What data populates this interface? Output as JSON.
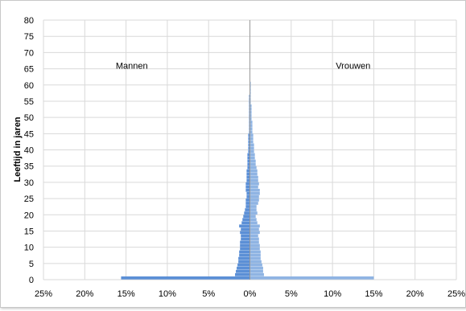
{
  "chart_data": {
    "type": "bar",
    "orientation": "horizontal-population-pyramid",
    "title": "",
    "xlabel": "",
    "ylabel": "Leeftijd in jaren",
    "xlim": [
      -25,
      25
    ],
    "ylim": [
      0,
      80
    ],
    "x_tick_labels": [
      "25%",
      "20%",
      "15%",
      "10%",
      "5%",
      "0%",
      "5%",
      "10%",
      "15%",
      "20%",
      "25%"
    ],
    "x_ticks": [
      -25,
      -20,
      -15,
      -10,
      -5,
      0,
      5,
      10,
      15,
      20,
      25
    ],
    "y_ticks": [
      0,
      5,
      10,
      15,
      20,
      25,
      30,
      35,
      40,
      45,
      50,
      55,
      60,
      65,
      70,
      75,
      80
    ],
    "grid": true,
    "annotations": [
      {
        "text": "Mannen",
        "x": -14.3,
        "y": 66
      },
      {
        "text": "Vrouwen",
        "x": 12.5,
        "y": 66
      }
    ],
    "colors": {
      "mannen": "#5b8fd6",
      "vrouwen": "#8fb4e3"
    },
    "ages": [
      0,
      1,
      2,
      3,
      4,
      5,
      6,
      7,
      8,
      9,
      10,
      11,
      12,
      13,
      14,
      15,
      16,
      17,
      18,
      19,
      20,
      21,
      22,
      23,
      24,
      25,
      26,
      27,
      28,
      29,
      30,
      31,
      32,
      33,
      34,
      35,
      36,
      37,
      38,
      39,
      40,
      41,
      42,
      43,
      44,
      45,
      46,
      47,
      48,
      49,
      50,
      51,
      52,
      53,
      54,
      55,
      56,
      57,
      58,
      59,
      60,
      61,
      62,
      63,
      64,
      65,
      66,
      67,
      68,
      69,
      70,
      71,
      72,
      73,
      74,
      75,
      76,
      77,
      78,
      79
    ],
    "series": [
      {
        "name": "Mannen",
        "values": [
          15.6,
          1.8,
          1.7,
          1.6,
          1.5,
          1.4,
          1.4,
          1.3,
          1.3,
          1.2,
          1.2,
          1.2,
          1.1,
          1.1,
          1.2,
          1.1,
          1.3,
          1.0,
          0.9,
          0.8,
          0.7,
          0.6,
          0.5,
          0.5,
          0.5,
          0.4,
          0.4,
          0.5,
          0.5,
          0.5,
          0.4,
          0.4,
          0.4,
          0.4,
          0.3,
          0.3,
          0.3,
          0.3,
          0.3,
          0.2,
          0.2,
          0.2,
          0.2,
          0.2,
          0.2,
          0.1,
          0.1,
          0.1,
          0.1,
          0.1,
          0.1,
          0.1,
          0.1,
          0.1,
          0.1,
          0.1,
          0.1,
          0.0,
          0.0,
          0.0,
          0.0,
          0.0,
          0.0,
          0.0,
          0.0,
          0.0,
          0.0,
          0.0,
          0.0,
          0.0,
          0.0,
          0.0,
          0.0,
          0.0,
          0.0,
          0.0,
          0.0,
          0.0,
          0.0,
          0.0
        ]
      },
      {
        "name": "Vrouwen",
        "values": [
          15.0,
          1.7,
          1.6,
          1.6,
          1.5,
          1.4,
          1.3,
          1.3,
          1.3,
          1.2,
          1.2,
          1.1,
          1.1,
          1.0,
          1.2,
          1.1,
          1.2,
          0.9,
          0.8,
          0.7,
          0.9,
          0.8,
          0.8,
          1.0,
          1.1,
          1.1,
          1.2,
          1.2,
          1.0,
          1.1,
          1.0,
          1.0,
          0.9,
          0.9,
          0.8,
          0.7,
          0.7,
          0.6,
          0.6,
          0.5,
          0.5,
          0.5,
          0.4,
          0.4,
          0.4,
          0.3,
          0.3,
          0.3,
          0.3,
          0.2,
          0.2,
          0.2,
          0.2,
          0.2,
          0.1,
          0.1,
          0.1,
          0.1,
          0.1,
          0.1,
          0.1,
          0.0,
          0.0,
          0.0,
          0.0,
          0.0,
          0.0,
          0.0,
          0.0,
          0.0,
          0.0,
          0.0,
          0.0,
          0.0,
          0.0,
          0.0,
          0.0,
          0.0,
          0.0,
          0.0
        ]
      }
    ]
  }
}
